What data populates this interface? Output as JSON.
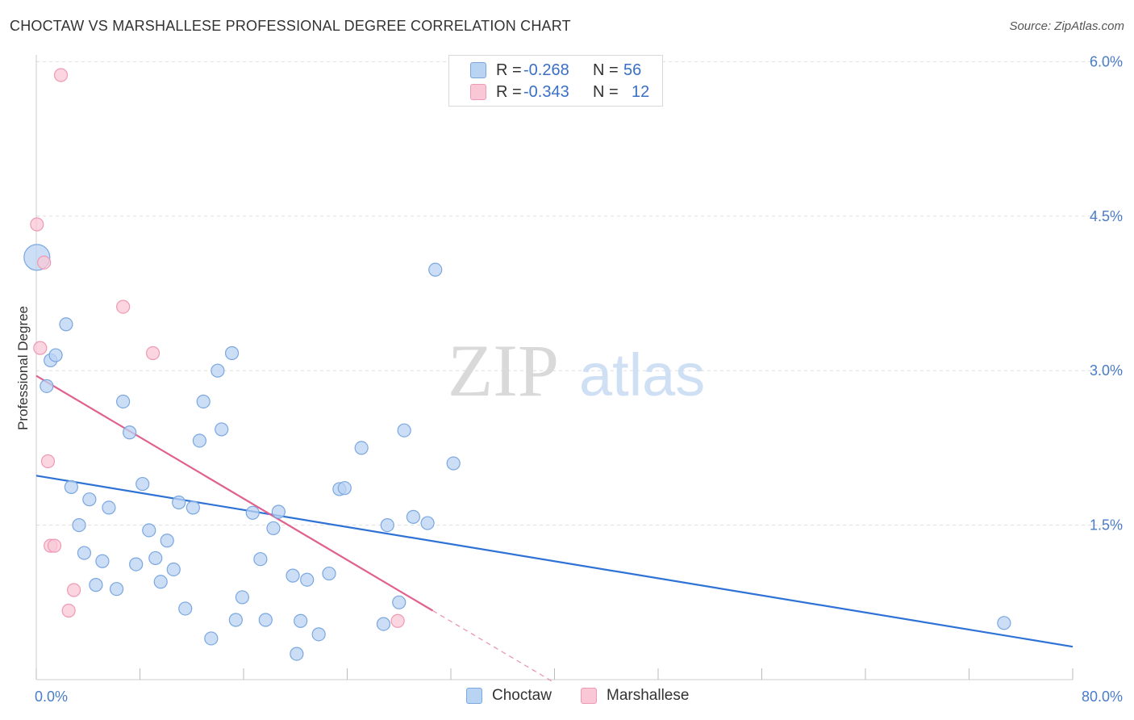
{
  "title": "CHOCTAW VS MARSHALLESE PROFESSIONAL DEGREE CORRELATION CHART",
  "source": "Source: ZipAtlas.com",
  "watermark": {
    "zip": "ZIP",
    "atlas": "atlas"
  },
  "colors": {
    "choctaw_fill": "#b9d3f3",
    "choctaw_stroke": "#7aa7e0",
    "choctaw_line": "#2f72d6",
    "marshallese_fill": "#f9c7d6",
    "marshallese_stroke": "#ee9ab4",
    "marshallese_line": "#e0608e",
    "axis_text": "#4a7cc8",
    "grid": "#dddddd"
  },
  "legend": {
    "rows": [
      {
        "r_label": "R =",
        "r_value": "-0.268",
        "n_label": "N =",
        "n_value": "56"
      },
      {
        "r_label": "R =",
        "r_value": "-0.343",
        "n_label": "N =",
        "n_value": "12"
      }
    ]
  },
  "bottom_legend": {
    "choctaw": "Choctaw",
    "marshallese": "Marshallese"
  },
  "chart_data": {
    "type": "scatter",
    "xlabel": "",
    "ylabel": "Professional Degree",
    "xlim": [
      0,
      80
    ],
    "ylim": [
      0,
      6.2
    ],
    "y_ticks": [
      {
        "value": 1.5,
        "label": "1.5%"
      },
      {
        "value": 3.0,
        "label": "3.0%"
      },
      {
        "value": 4.5,
        "label": "4.5%"
      },
      {
        "value": 6.0,
        "label": "6.0%"
      }
    ],
    "x_tick_labels": {
      "min": "0.0%",
      "max": "80.0%"
    },
    "grid": true,
    "series": [
      {
        "name": "Choctaw",
        "points": [
          [
            0.05,
            4.1
          ],
          [
            0.8,
            2.85
          ],
          [
            1.1,
            3.1
          ],
          [
            1.5,
            3.15
          ],
          [
            2.3,
            3.45
          ],
          [
            2.7,
            1.87
          ],
          [
            3.3,
            1.5
          ],
          [
            3.7,
            1.23
          ],
          [
            4.1,
            1.75
          ],
          [
            4.6,
            0.92
          ],
          [
            5.1,
            1.15
          ],
          [
            5.6,
            1.67
          ],
          [
            6.2,
            0.88
          ],
          [
            6.7,
            2.7
          ],
          [
            7.2,
            2.4
          ],
          [
            7.7,
            1.12
          ],
          [
            8.2,
            1.9
          ],
          [
            8.7,
            1.45
          ],
          [
            9.2,
            1.18
          ],
          [
            9.6,
            0.95
          ],
          [
            10.1,
            1.35
          ],
          [
            10.6,
            1.07
          ],
          [
            11.0,
            1.72
          ],
          [
            11.5,
            0.69
          ],
          [
            12.1,
            1.67
          ],
          [
            12.6,
            2.32
          ],
          [
            12.9,
            2.7
          ],
          [
            13.5,
            0.4
          ],
          [
            14.0,
            3.0
          ],
          [
            14.3,
            2.43
          ],
          [
            15.1,
            3.17
          ],
          [
            15.4,
            0.58
          ],
          [
            15.9,
            0.8
          ],
          [
            16.7,
            1.62
          ],
          [
            17.3,
            1.17
          ],
          [
            17.7,
            0.58
          ],
          [
            18.3,
            1.47
          ],
          [
            18.7,
            1.63
          ],
          [
            19.8,
            1.01
          ],
          [
            20.1,
            0.25
          ],
          [
            20.4,
            0.57
          ],
          [
            20.9,
            0.97
          ],
          [
            21.8,
            0.44
          ],
          [
            22.6,
            1.03
          ],
          [
            23.4,
            1.85
          ],
          [
            23.8,
            1.86
          ],
          [
            25.1,
            2.25
          ],
          [
            26.8,
            0.54
          ],
          [
            27.1,
            1.5
          ],
          [
            28.0,
            0.75
          ],
          [
            28.4,
            2.42
          ],
          [
            29.1,
            1.58
          ],
          [
            30.2,
            1.52
          ],
          [
            30.8,
            3.98
          ],
          [
            32.2,
            2.1
          ],
          [
            74.7,
            0.55
          ]
        ]
      },
      {
        "name": "Marshallese",
        "points": [
          [
            0.05,
            4.42
          ],
          [
            0.3,
            3.22
          ],
          [
            0.6,
            4.05
          ],
          [
            0.9,
            2.12
          ],
          [
            1.1,
            1.3
          ],
          [
            1.4,
            1.3
          ],
          [
            1.9,
            5.87
          ],
          [
            2.5,
            0.67
          ],
          [
            2.9,
            0.87
          ],
          [
            6.7,
            3.62
          ],
          [
            9.0,
            3.17
          ],
          [
            27.9,
            0.57
          ]
        ]
      }
    ],
    "trendlines": [
      {
        "series": "Choctaw",
        "x": [
          0,
          80
        ],
        "y": [
          1.98,
          0.32
        ],
        "dashed_to": null
      },
      {
        "series": "Marshallese",
        "x": [
          0,
          30.6
        ],
        "y": [
          2.95,
          0.67
        ],
        "dashed_to": {
          "x": 40,
          "y": -0.03
        }
      }
    ]
  }
}
